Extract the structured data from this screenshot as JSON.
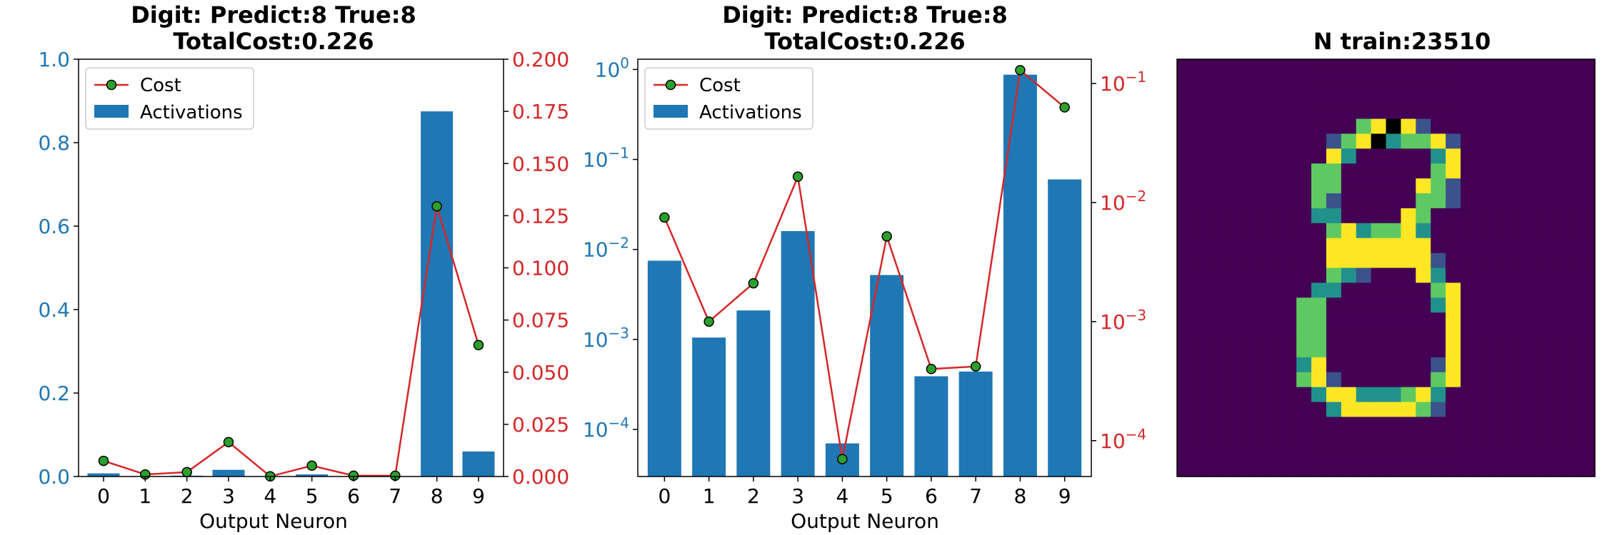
{
  "colors": {
    "bar": "#1f77b4",
    "cost_line": "#d62728",
    "marker_fill": "#2ca02c",
    "left_axis": "#1f77b4",
    "right_axis": "#d62728"
  },
  "chart_data": [
    {
      "type": "bar",
      "title_line1": "Digit: Predict:8 True:8",
      "title_line2": "TotalCost:0.226",
      "xlabel": "Output Neuron",
      "categories": [
        "0",
        "1",
        "2",
        "3",
        "4",
        "5",
        "6",
        "7",
        "8",
        "9"
      ],
      "yscale": "linear",
      "ylim_left": [
        0,
        1.0
      ],
      "yticks_left": [
        "0.0",
        "0.2",
        "0.4",
        "0.6",
        "0.8",
        "1.0"
      ],
      "ylim_right": [
        0,
        0.2
      ],
      "yticks_right": [
        "0.000",
        "0.025",
        "0.050",
        "0.075",
        "0.100",
        "0.125",
        "0.150",
        "0.175",
        "0.200"
      ],
      "legend_position": "upper left",
      "series": [
        {
          "name": "Activations",
          "type": "bar",
          "axis": "left",
          "values": [
            0.0075,
            0.001,
            0.002,
            0.016,
            7e-05,
            0.005,
            0.0004,
            0.00045,
            0.875,
            0.06
          ]
        },
        {
          "name": "Cost",
          "type": "line",
          "axis": "right",
          "values": [
            0.0075,
            0.001,
            0.0021,
            0.0165,
            7e-05,
            0.0052,
            0.0004,
            0.0004,
            0.1295,
            0.063
          ]
        }
      ]
    },
    {
      "type": "bar",
      "title_line1": "Digit: Predict:8 True:8",
      "title_line2": "TotalCost:0.226",
      "xlabel": "Output Neuron",
      "categories": [
        "0",
        "1",
        "2",
        "3",
        "4",
        "5",
        "6",
        "7",
        "8",
        "9"
      ],
      "yscale": "log",
      "ylim_left": [
        3e-05,
        1.3
      ],
      "yticks_left": [
        {
          "base": "10",
          "exp": "0",
          "value": 1
        },
        {
          "base": "10",
          "exp": "−1",
          "value": 0.1
        },
        {
          "base": "10",
          "exp": "−2",
          "value": 0.01
        },
        {
          "base": "10",
          "exp": "−3",
          "value": 0.001
        },
        {
          "base": "10",
          "exp": "−4",
          "value": 0.0001
        }
      ],
      "ylim_right": [
        5e-05,
        0.16
      ],
      "yticks_right": [
        {
          "base": "10",
          "exp": "−1",
          "value": 0.1
        },
        {
          "base": "10",
          "exp": "−2",
          "value": 0.01
        },
        {
          "base": "10",
          "exp": "−3",
          "value": 0.001
        },
        {
          "base": "10",
          "exp": "−4",
          "value": 0.0001
        }
      ],
      "legend_position": "upper left",
      "series": [
        {
          "name": "Activations",
          "type": "bar",
          "axis": "left",
          "values": [
            0.0075,
            0.00105,
            0.0021,
            0.016,
            7e-05,
            0.0052,
            0.00039,
            0.00044,
            0.875,
            0.06
          ]
        },
        {
          "name": "Cost",
          "type": "line",
          "axis": "right",
          "values": [
            0.0075,
            0.001,
            0.0021,
            0.0165,
            7e-05,
            0.0052,
            0.0004,
            0.00042,
            0.1295,
            0.063
          ]
        }
      ]
    },
    {
      "type": "heatmap",
      "title": "N train:23510",
      "colormap": [
        "#440154",
        "#3b528b",
        "#21918c",
        "#5ec962",
        "#fde725"
      ],
      "grid": [
        "0000000000000000000000000000",
        "0000000000000000000000000000",
        "0000000000000000000000000000",
        "0000000000000000000000000000",
        "0000000000003454100000000000",
        "0000000000134523341000000000",
        "0000000000420000024000000000",
        "0000000003300000034000000000",
        "0000000003300000431000000000",
        "0000000003100000331000000000",
        "0000000002200004300000000000",
        "0000000000342334200000000000",
        "0000000000444444400000000000",
        "0000000000444444410000000000",
        "0000000000321000420000000000",
        "0000000002200000034000000000",
        "0000000033000000024000000000",
        "0000000033000000004000000000",
        "0000000033000000004000000000",
        "0000000033000000004000000000",
        "0000000024000000014000000000",
        "0000000034100000034000000000",
        "0000000002442223420000000000",
        "0000000000244444310000000000",
        "0000000000000000000000000000",
        "0000000000000000000000000000",
        "0000000000000000000000000000",
        "0000000000000000000000000000"
      ]
    }
  ]
}
